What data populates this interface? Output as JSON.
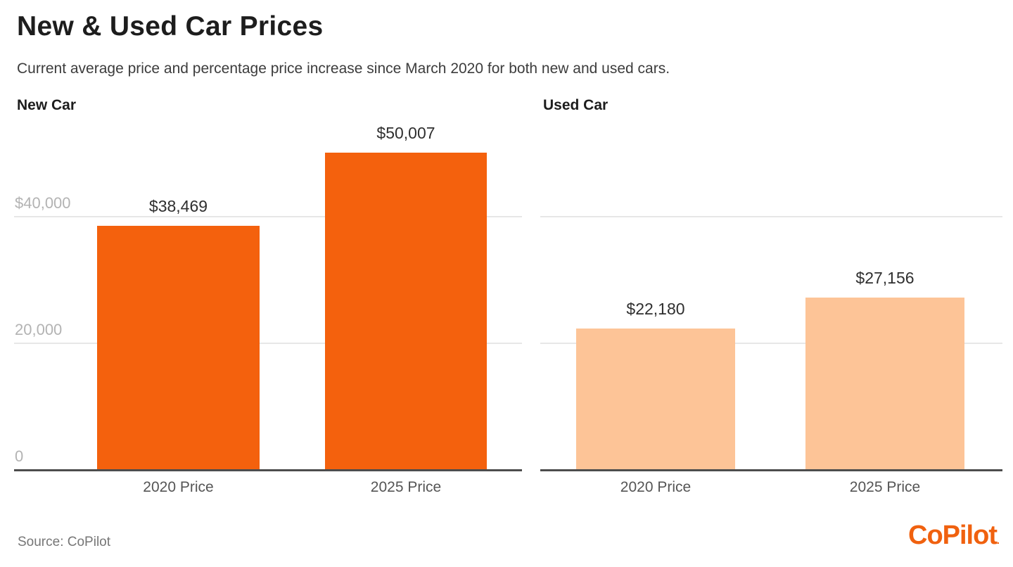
{
  "page": {
    "title": "New & Used Car Prices",
    "subtitle": "Current average price and percentage price increase since March 2020 for both new and used cars."
  },
  "footer": {
    "source": "Source: CoPilot",
    "logo_text": "CoPilot",
    "logo_mark": "."
  },
  "colors": {
    "new_bar": "#f4610d",
    "used_bar": "#fdc497",
    "gridline": "#e7e7e7",
    "baseline": "#4d4d4d",
    "logo_orange": "#f0610f"
  },
  "chart_data": [
    {
      "type": "bar",
      "title": "New Car",
      "categories": [
        "2020 Price",
        "2025 Price"
      ],
      "values": [
        38469,
        50007
      ],
      "value_labels": [
        "$38,469",
        "$50,007"
      ],
      "bar_color": "#f4610d",
      "ylim": [
        0,
        52000
      ],
      "grid": true,
      "legend": "none",
      "show_ytick_labels": true,
      "yticks": [
        {
          "value": 0,
          "label": "0"
        },
        {
          "value": 20000,
          "label": "20,000"
        },
        {
          "value": 40000,
          "label": "$40,000"
        }
      ]
    },
    {
      "type": "bar",
      "title": "Used Car",
      "categories": [
        "2020 Price",
        "2025 Price"
      ],
      "values": [
        22180,
        27156
      ],
      "value_labels": [
        "$22,180",
        "$27,156"
      ],
      "bar_color": "#fdc497",
      "ylim": [
        0,
        52000
      ],
      "grid": true,
      "legend": "none",
      "show_ytick_labels": false,
      "yticks": [
        {
          "value": 0,
          "label": ""
        },
        {
          "value": 20000,
          "label": ""
        },
        {
          "value": 40000,
          "label": ""
        }
      ]
    }
  ]
}
